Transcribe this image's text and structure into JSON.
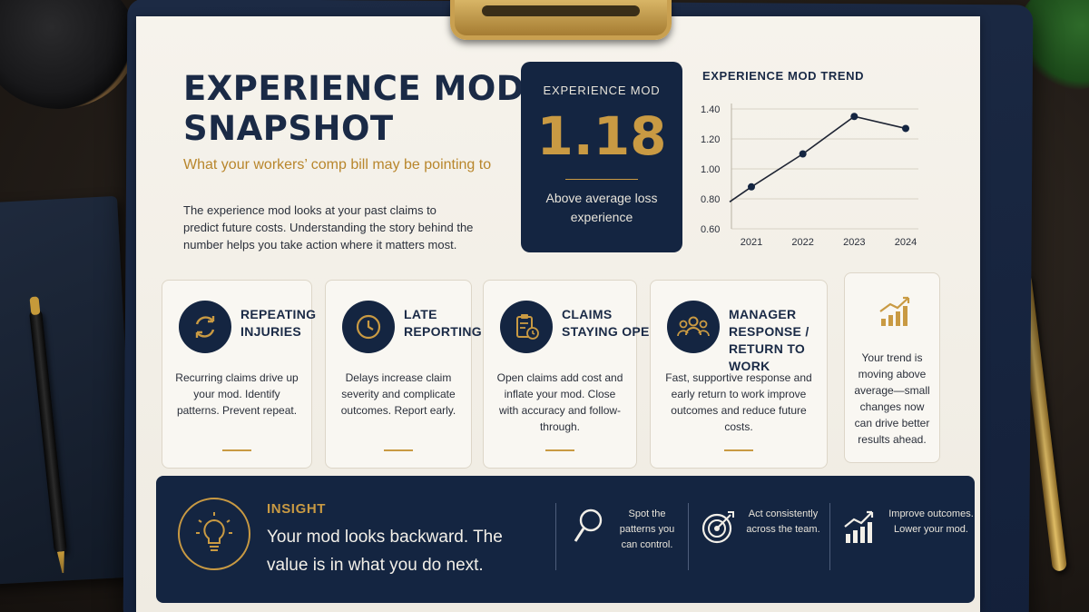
{
  "header": {
    "title_line1": "EXPERIENCE MOD",
    "title_line2": "SNAPSHOT",
    "subtitle": "What your workers’ comp bill may be pointing to",
    "intro": "The experience mod looks at your past claims to predict future costs. Understanding the story behind the number helps you take action where it matters most."
  },
  "mod_card": {
    "label": "EXPERIENCE MOD",
    "value": "1.18",
    "description": "Above average loss experience"
  },
  "trend": {
    "title": "EXPERIENCE MOD TREND"
  },
  "chart_data": {
    "type": "line",
    "title": "EXPERIENCE MOD TREND",
    "x": [
      "2021",
      "2022",
      "2023",
      "2024"
    ],
    "series": [
      {
        "values": [
          0.88,
          1.1,
          1.35,
          1.27
        ]
      }
    ],
    "line_start": {
      "value": 0.78
    },
    "yticks": [
      "1.40",
      "1.20",
      "1.00",
      "0.80",
      "0.60"
    ],
    "ylim": [
      0.6,
      1.4
    ],
    "grid": true,
    "xlabel": "",
    "ylabel": ""
  },
  "cards": [
    {
      "title": "REPEATING INJURIES",
      "body": "Recurring claims drive up your mod. Identify patterns. Prevent repeat.",
      "icon": "repeat-arrows-icon"
    },
    {
      "title": "LATE REPORTING",
      "body": "Delays increase claim severity and complicate outcomes. Report early.",
      "icon": "clock-icon"
    },
    {
      "title": "CLAIMS STAYING OPEN",
      "body": "Open claims add cost and inflate your mod. Close with accuracy and follow-through.",
      "icon": "clipboard-clock-icon"
    },
    {
      "title": "MANAGER RESPONSE / RETURN TO WORK",
      "body": "Fast, supportive response and early return to work improve outcomes and reduce future costs.",
      "icon": "team-icon"
    }
  ],
  "trend_card": {
    "body": "Your trend is moving above average—small changes now can drive better results ahead.",
    "icon": "bar-chart-up-icon"
  },
  "insight": {
    "label": "INSIGHT",
    "text": "Your mod looks backward. The value is in what you do next.",
    "items": [
      {
        "text": "Spot the patterns you can control.",
        "icon": "magnifier-icon"
      },
      {
        "text": "Act consistently across the team.",
        "icon": "target-icon"
      },
      {
        "text": "Improve outcomes. Lower your mod.",
        "icon": "growth-chart-icon"
      }
    ]
  },
  "colors": {
    "navy": "#142541",
    "gold": "#c99a43",
    "paper": "#f6f3ec"
  }
}
